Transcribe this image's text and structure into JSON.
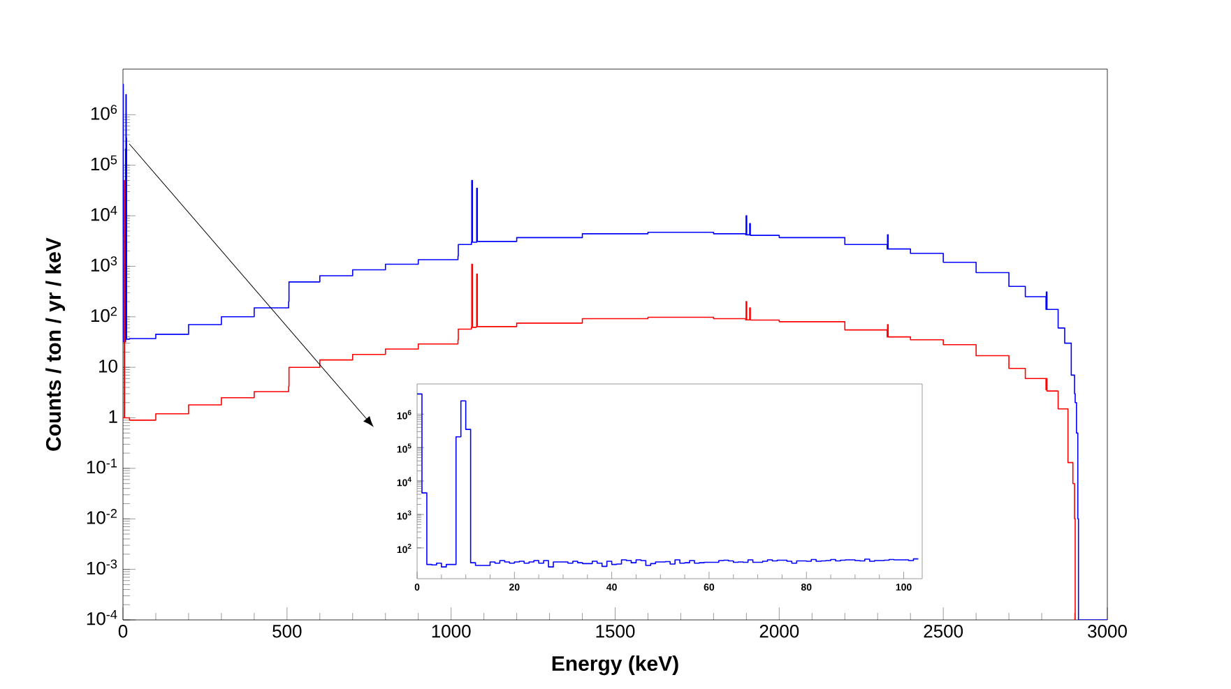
{
  "chart_data": [
    {
      "type": "step",
      "xlabel": "Energy (keV)",
      "ylabel": "Counts / ton / yr / keV",
      "log": "y",
      "xlim": [
        0,
        3000
      ],
      "xticks": [
        0,
        500,
        1000,
        1500,
        2000,
        2500,
        3000
      ],
      "ylim": [
        0.0001,
        8000000
      ],
      "yticks": [
        {
          "value": 0.0001,
          "label": "10$^{-4}$"
        },
        {
          "value": 0.001,
          "label": "10$^{-3}$"
        },
        {
          "value": 0.01,
          "label": "10$^{-2}$"
        },
        {
          "value": 0.1,
          "label": "10$^{-1}$"
        },
        1,
        10,
        {
          "value": 100,
          "label": "10$^{2}$"
        },
        {
          "value": 1000,
          "label": "10$^{3}$"
        },
        {
          "value": 10000,
          "label": "10$^{4}$"
        },
        {
          "value": 100000,
          "label": "10$^{5}$"
        },
        {
          "value": 1000000,
          "label": "10$^{6}$"
        }
      ],
      "series": [
        {
          "color": "#0000ff",
          "x": [
            0,
            1,
            2,
            8,
            9,
            10,
            11,
            20,
            100,
            200,
            300,
            400,
            505,
            506,
            600,
            700,
            800,
            900,
            1021,
            1022,
            1062,
            1063,
            1065,
            1077,
            1078,
            1080,
            1200,
            1400,
            1600,
            1800,
            1898,
            1899,
            1901,
            1910,
            1912,
            2000,
            2200,
            2329,
            2330,
            2332,
            2400,
            2500,
            2600,
            2700,
            2750,
            2813,
            2814,
            2816,
            2850,
            2870,
            2890,
            2900,
            2902,
            2906,
            2910,
            2912,
            3000
          ],
          "values": [
            4000000,
            4400,
            32,
            210000,
            2500000,
            350000,
            36,
            37,
            45,
            70,
            100,
            150,
            200,
            490,
            650,
            850,
            1100,
            1350,
            1600,
            2700,
            3000,
            50000,
            3000,
            3000,
            35000,
            3100,
            3700,
            4400,
            4700,
            4400,
            4200,
            10000,
            4200,
            7000,
            4100,
            3700,
            2700,
            2200,
            4200,
            2200,
            1800,
            1200,
            750,
            400,
            250,
            140,
            310,
            140,
            60,
            30,
            7,
            3,
            2,
            0.5,
            0.01,
            0.0001,
            0.0001
          ]
        },
        {
          "color": "#ff0000",
          "x": [
            0,
            4,
            5,
            20,
            100,
            200,
            300,
            400,
            505,
            506,
            600,
            700,
            800,
            900,
            1021,
            1022,
            1062,
            1063,
            1065,
            1077,
            1078,
            1080,
            1200,
            1400,
            1600,
            1800,
            1898,
            1899,
            1901,
            1910,
            1912,
            2000,
            2200,
            2329,
            2330,
            2332,
            2400,
            2500,
            2600,
            2700,
            2750,
            2813,
            2814,
            2816,
            2850,
            2880,
            2895,
            2900,
            2902
          ],
          "values": [
            1,
            50000,
            1,
            0.9,
            1.2,
            1.8,
            2.5,
            3.3,
            4.2,
            10,
            14,
            18,
            23,
            29,
            35,
            57,
            62,
            1100,
            62,
            63,
            700,
            64,
            75,
            92,
            98,
            92,
            87,
            200,
            87,
            150,
            86,
            80,
            55,
            40,
            70,
            40,
            35,
            28,
            17,
            9.5,
            6,
            3.6,
            6,
            3.4,
            1.5,
            0.13,
            0.05,
            0.01,
            0.0001
          ]
        }
      ]
    },
    {
      "type": "histogram",
      "log": "y",
      "xlim": [
        0,
        103.8
      ],
      "xticks": [
        0,
        20,
        40,
        60,
        80,
        100
      ],
      "ylim": [
        12,
        8000000
      ],
      "yticks": [
        {
          "value": 100,
          "label": "10$^{2}$"
        },
        {
          "value": 1000,
          "label": "10$^{3}$"
        },
        {
          "value": 10000,
          "label": "10$^{4}$"
        },
        {
          "value": 100000,
          "label": "10$^{5}$"
        },
        {
          "value": 1000000,
          "label": "10$^{6}$"
        }
      ],
      "color": "#0000ff",
      "bins": [
        0,
        1,
        2,
        3,
        4,
        5,
        6,
        7,
        8,
        9,
        10,
        11,
        12,
        13,
        14,
        15,
        16,
        17,
        18,
        19,
        20,
        21,
        22,
        23,
        24,
        25,
        26,
        27,
        28,
        29,
        30,
        31,
        32,
        33,
        34,
        35,
        36,
        37,
        38,
        39,
        40,
        41,
        42,
        43,
        44,
        45,
        46,
        47,
        48,
        49,
        50,
        51,
        52,
        53,
        54,
        55,
        56,
        57,
        58,
        59,
        60,
        61,
        62,
        63,
        64,
        65,
        66,
        67,
        68,
        69,
        70,
        71,
        72,
        73,
        74,
        75,
        76,
        77,
        78,
        79,
        80,
        81,
        82,
        83,
        84,
        85,
        86,
        87,
        88,
        89,
        90,
        91,
        92,
        93,
        94,
        95,
        96,
        97,
        98,
        99,
        100,
        101,
        102,
        103
      ],
      "values": [
        4000000,
        4400,
        32,
        31,
        35,
        27,
        32,
        32,
        210000,
        2500000,
        350000,
        36,
        30,
        30,
        30,
        38,
        35,
        42,
        38,
        35,
        38,
        40,
        35,
        38,
        42,
        35,
        42,
        27,
        38,
        38,
        38,
        35,
        40,
        36,
        34,
        34,
        40,
        35,
        28,
        40,
        32,
        33,
        44,
        42,
        36,
        44,
        42,
        30,
        34,
        38,
        38,
        39,
        33,
        44,
        35,
        36,
        42,
        35,
        36,
        37,
        37,
        37,
        42,
        43,
        41,
        37,
        38,
        37,
        44,
        37,
        37,
        40,
        44,
        41,
        43,
        43,
        40,
        35,
        41,
        41,
        40,
        45,
        40,
        41,
        42,
        45,
        41,
        43,
        44,
        44,
        42,
        41,
        46,
        40,
        42,
        42,
        43,
        45,
        44,
        44,
        44,
        42,
        47
      ]
    }
  ]
}
